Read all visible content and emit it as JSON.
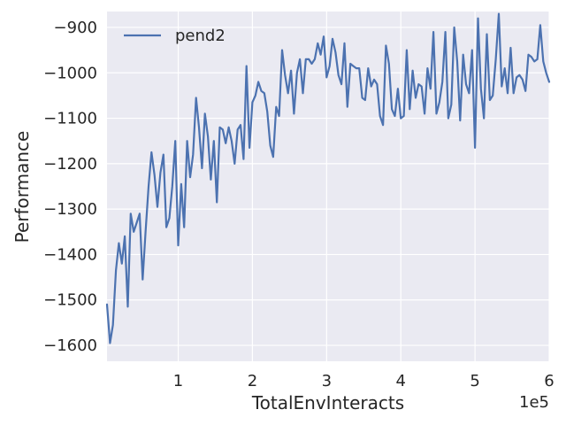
{
  "chart_data": {
    "type": "line",
    "title": "",
    "xlabel": "TotalEnvInteracts",
    "ylabel": "Performance",
    "x_offset_label": "1e5",
    "xlim": [
      4000,
      600000
    ],
    "ylim": [
      -1635,
      -865
    ],
    "x_ticks": [
      100000,
      200000,
      300000,
      400000,
      500000,
      600000
    ],
    "x_tick_labels": [
      "1",
      "2",
      "3",
      "4",
      "5",
      "6"
    ],
    "y_ticks": [
      -1600,
      -1500,
      -1400,
      -1300,
      -1200,
      -1100,
      -1000,
      -900
    ],
    "y_tick_labels": [
      "−1600",
      "−1500",
      "−1400",
      "−1300",
      "−1200",
      "−1100",
      "−1000",
      "−900"
    ],
    "grid": true,
    "legend_position": "top-left",
    "colors": {
      "plot_bg": "#EAEAF2",
      "grid": "#FFFFFF",
      "line": "#4C72B0",
      "text": "#262626"
    },
    "series": [
      {
        "name": "pend2",
        "x": [
          4000,
          8000,
          12000,
          16000,
          20000,
          24000,
          28000,
          32000,
          36000,
          40000,
          44000,
          48000,
          52000,
          56000,
          60000,
          64000,
          68000,
          72000,
          76000,
          80000,
          84000,
          88000,
          92000,
          96000,
          100000,
          104000,
          108000,
          112000,
          116000,
          120000,
          124000,
          128000,
          132000,
          136000,
          140000,
          144000,
          148000,
          152000,
          156000,
          160000,
          164000,
          168000,
          172000,
          176000,
          180000,
          184000,
          188000,
          192000,
          196000,
          200000,
          204000,
          208000,
          212000,
          216000,
          220000,
          224000,
          228000,
          232000,
          236000,
          240000,
          244000,
          248000,
          252000,
          256000,
          260000,
          264000,
          268000,
          272000,
          276000,
          280000,
          284000,
          288000,
          292000,
          296000,
          300000,
          304000,
          308000,
          312000,
          316000,
          320000,
          324000,
          328000,
          332000,
          336000,
          340000,
          344000,
          348000,
          352000,
          356000,
          360000,
          364000,
          368000,
          372000,
          376000,
          380000,
          384000,
          388000,
          392000,
          396000,
          400000,
          404000,
          408000,
          412000,
          416000,
          420000,
          424000,
          428000,
          432000,
          436000,
          440000,
          444000,
          448000,
          452000,
          456000,
          460000,
          464000,
          468000,
          472000,
          476000,
          480000,
          484000,
          488000,
          492000,
          496000,
          500000,
          504000,
          508000,
          512000,
          516000,
          520000,
          524000,
          528000,
          532000,
          536000,
          540000,
          544000,
          548000,
          552000,
          556000,
          560000,
          564000,
          568000,
          572000,
          576000,
          580000,
          584000,
          588000,
          592000,
          596000,
          600000
        ],
        "y": [
          -1510,
          -1595,
          -1555,
          -1435,
          -1375,
          -1420,
          -1360,
          -1515,
          -1310,
          -1350,
          -1330,
          -1310,
          -1455,
          -1350,
          -1250,
          -1175,
          -1225,
          -1295,
          -1220,
          -1180,
          -1340,
          -1320,
          -1250,
          -1150,
          -1380,
          -1245,
          -1340,
          -1150,
          -1230,
          -1180,
          -1055,
          -1120,
          -1210,
          -1090,
          -1140,
          -1235,
          -1150,
          -1285,
          -1120,
          -1125,
          -1155,
          -1120,
          -1150,
          -1200,
          -1125,
          -1115,
          -1190,
          -985,
          -1165,
          -1065,
          -1050,
          -1020,
          -1040,
          -1045,
          -1085,
          -1160,
          -1185,
          -1075,
          -1095,
          -950,
          -1005,
          -1045,
          -995,
          -1090,
          -1000,
          -970,
          -1045,
          -970,
          -970,
          -980,
          -970,
          -935,
          -960,
          -920,
          -1010,
          -985,
          -925,
          -955,
          -1005,
          -1025,
          -935,
          -1075,
          -980,
          -985,
          -990,
          -990,
          -1055,
          -1060,
          -990,
          -1030,
          -1015,
          -1025,
          -1095,
          -1115,
          -940,
          -980,
          -1080,
          -1095,
          -1035,
          -1100,
          -1095,
          -950,
          -1080,
          -995,
          -1055,
          -1025,
          -1030,
          -1090,
          -990,
          -1035,
          -910,
          -1090,
          -1065,
          -1020,
          -910,
          -1100,
          -1070,
          -900,
          -975,
          -1105,
          -960,
          -1025,
          -1045,
          -950,
          -1165,
          -880,
          -1035,
          -1100,
          -915,
          -1060,
          -1050,
          -970,
          -870,
          -1030,
          -990,
          -1045,
          -945,
          -1045,
          -1010,
          -1005,
          -1015,
          -1040,
          -960,
          -965,
          -975,
          -970,
          -895,
          -975,
          -1000,
          -1020
        ]
      }
    ]
  }
}
